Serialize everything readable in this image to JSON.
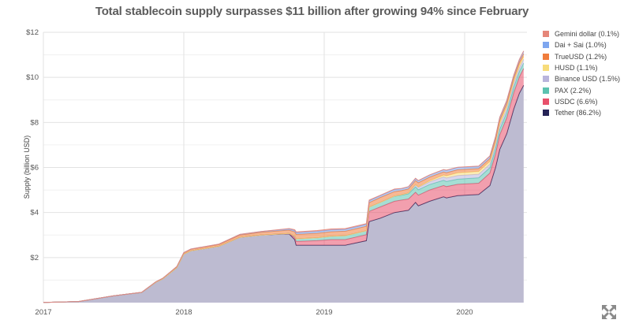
{
  "chart_data": {
    "type": "area",
    "stacked": true,
    "title": "Total stablecoin supply surpasses $11 billion after growing 94% since February",
    "xlabel": "",
    "ylabel": "Supply (billion USD)",
    "ylim": [
      0,
      12
    ],
    "xlim": [
      2017.0,
      2020.42
    ],
    "y_ticks": [
      {
        "v": 2,
        "label": "$2"
      },
      {
        "v": 4,
        "label": "$4"
      },
      {
        "v": 6,
        "label": "$6"
      },
      {
        "v": 8,
        "label": "$8"
      },
      {
        "v": 10,
        "label": "$10"
      },
      {
        "v": 12,
        "label": "$12"
      }
    ],
    "x_ticks": [
      {
        "v": 2017,
        "label": "2017"
      },
      {
        "v": 2018,
        "label": "2018"
      },
      {
        "v": 2019,
        "label": "2019"
      },
      {
        "v": 2020,
        "label": "2020"
      }
    ],
    "grid": true,
    "legend_position": "right",
    "x": [
      2017.0,
      2017.25,
      2017.4,
      2017.5,
      2017.6,
      2017.7,
      2017.8,
      2017.85,
      2017.9,
      2017.95,
      2018.0,
      2018.05,
      2018.25,
      2018.4,
      2018.55,
      2018.75,
      2018.79,
      2018.8,
      2018.95,
      2019.05,
      2019.15,
      2019.3,
      2019.32,
      2019.4,
      2019.5,
      2019.55,
      2019.6,
      2019.65,
      2019.67,
      2019.75,
      2019.85,
      2019.87,
      2019.95,
      2020.1,
      2020.18,
      2020.22,
      2020.25,
      2020.3,
      2020.35,
      2020.39,
      2020.42
    ],
    "series": [
      {
        "name": "Tether",
        "legend": "Tether (86.2%)",
        "color": "#252356",
        "values": [
          0.01,
          0.05,
          0.2,
          0.3,
          0.38,
          0.45,
          0.9,
          1.05,
          1.3,
          1.55,
          2.15,
          2.3,
          2.5,
          2.9,
          3.0,
          3.05,
          2.8,
          2.55,
          2.55,
          2.55,
          2.55,
          2.75,
          3.6,
          3.75,
          4.0,
          4.05,
          4.1,
          4.45,
          4.3,
          4.5,
          4.7,
          4.65,
          4.75,
          4.8,
          5.2,
          6.0,
          6.8,
          7.5,
          8.6,
          9.3,
          9.65
        ]
      },
      {
        "name": "USDC",
        "legend": "USDC (6.6%)",
        "color": "#e8506b",
        "values": [
          0,
          0,
          0,
          0,
          0,
          0,
          0,
          0,
          0,
          0,
          0,
          0,
          0,
          0,
          0,
          0.01,
          0.1,
          0.17,
          0.2,
          0.25,
          0.25,
          0.27,
          0.45,
          0.5,
          0.5,
          0.5,
          0.5,
          0.45,
          0.47,
          0.5,
          0.5,
          0.5,
          0.5,
          0.5,
          0.55,
          0.6,
          0.65,
          0.7,
          0.72,
          0.72,
          0.74
        ]
      },
      {
        "name": "PAX",
        "legend": "PAX (2.2%)",
        "color": "#5cc2b0",
        "values": [
          0,
          0,
          0,
          0,
          0,
          0,
          0,
          0,
          0,
          0,
          0,
          0,
          0,
          0,
          0,
          0.01,
          0.06,
          0.11,
          0.13,
          0.15,
          0.17,
          0.17,
          0.19,
          0.2,
          0.22,
          0.22,
          0.23,
          0.24,
          0.24,
          0.24,
          0.23,
          0.23,
          0.23,
          0.24,
          0.24,
          0.24,
          0.24,
          0.24,
          0.24,
          0.24,
          0.24
        ]
      },
      {
        "name": "Binance USD",
        "legend": "Binance USD (1.5%)",
        "color": "#b9b4dc",
        "values": [
          0,
          0,
          0,
          0,
          0,
          0,
          0,
          0,
          0,
          0,
          0,
          0,
          0,
          0,
          0,
          0,
          0,
          0,
          0,
          0,
          0,
          0,
          0,
          0,
          0.01,
          0.02,
          0.04,
          0.08,
          0.1,
          0.12,
          0.15,
          0.15,
          0.16,
          0.16,
          0.16,
          0.17,
          0.17,
          0.17,
          0.17,
          0.17,
          0.17
        ]
      },
      {
        "name": "HUSD",
        "legend": "HUSD (1.1%)",
        "color": "#f7dc7a",
        "values": [
          0,
          0,
          0,
          0,
          0,
          0,
          0,
          0,
          0,
          0,
          0,
          0,
          0,
          0,
          0,
          0,
          0,
          0,
          0,
          0,
          0,
          0,
          0,
          0,
          0,
          0,
          0,
          0.02,
          0.03,
          0.05,
          0.08,
          0.1,
          0.12,
          0.12,
          0.12,
          0.12,
          0.12,
          0.12,
          0.12,
          0.12,
          0.12
        ]
      },
      {
        "name": "TrueUSD",
        "legend": "TrueUSD (1.2%)",
        "color": "#f07d3c",
        "values": [
          0,
          0,
          0,
          0,
          0,
          0.01,
          0.02,
          0.03,
          0.04,
          0.05,
          0.06,
          0.07,
          0.08,
          0.1,
          0.12,
          0.15,
          0.18,
          0.2,
          0.2,
          0.2,
          0.2,
          0.2,
          0.2,
          0.22,
          0.2,
          0.18,
          0.18,
          0.18,
          0.18,
          0.16,
          0.14,
          0.14,
          0.14,
          0.13,
          0.13,
          0.13,
          0.13,
          0.13,
          0.13,
          0.13,
          0.13
        ]
      },
      {
        "name": "Dai + Sai",
        "legend": "Dai + Sai (1.0%)",
        "color": "#7ea6ef",
        "values": [
          0,
          0,
          0,
          0,
          0,
          0,
          0,
          0,
          0,
          0,
          0.01,
          0.01,
          0.02,
          0.03,
          0.04,
          0.05,
          0.06,
          0.07,
          0.08,
          0.08,
          0.08,
          0.08,
          0.08,
          0.08,
          0.09,
          0.09,
          0.09,
          0.09,
          0.09,
          0.09,
          0.1,
          0.1,
          0.1,
          0.1,
          0.1,
          0.11,
          0.11,
          0.11,
          0.11,
          0.11,
          0.11
        ]
      },
      {
        "name": "Gemini dollar",
        "legend": "Gemini dollar (0.1%)",
        "color": "#e58679",
        "values": [
          0,
          0,
          0,
          0,
          0,
          0,
          0,
          0,
          0,
          0,
          0,
          0,
          0,
          0,
          0,
          0.02,
          0.04,
          0.04,
          0.04,
          0.04,
          0.04,
          0.04,
          0.03,
          0.02,
          0.02,
          0.01,
          0.01,
          0.01,
          0.01,
          0.01,
          0.01,
          0.01,
          0.01,
          0.01,
          0.01,
          0.01,
          0.01,
          0.01,
          0.01,
          0.01,
          0.01
        ]
      }
    ],
    "legend_order": [
      "Gemini dollar",
      "Dai + Sai",
      "TrueUSD",
      "HUSD",
      "Binance USD",
      "PAX",
      "USDC",
      "Tether"
    ]
  },
  "ui": {
    "expand_icon": "expand-arrows-icon"
  }
}
